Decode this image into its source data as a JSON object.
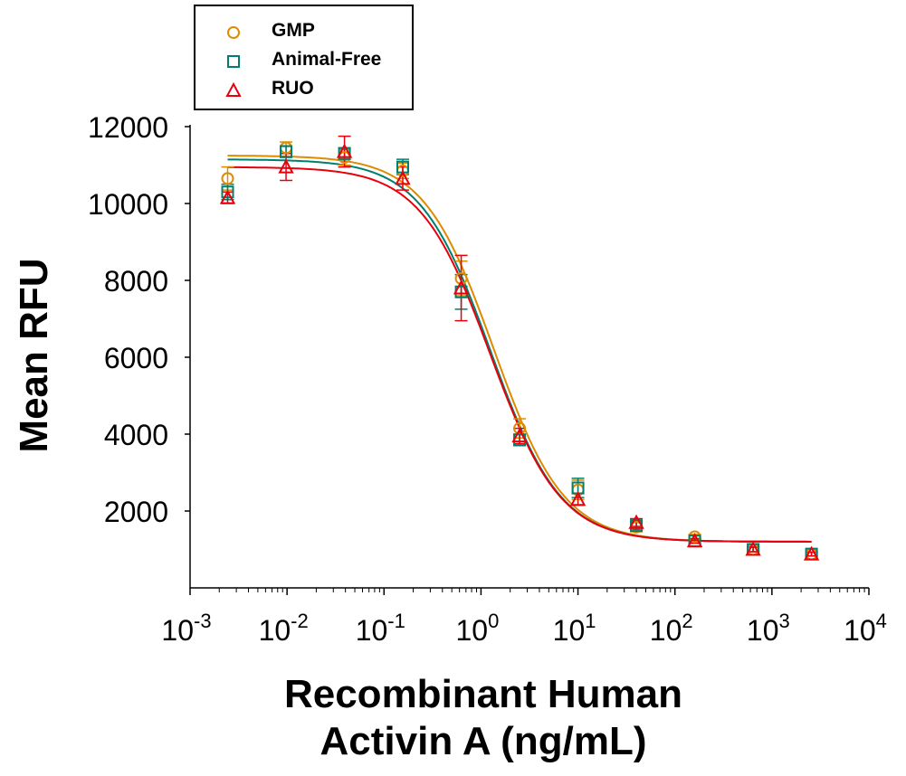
{
  "chart_data": {
    "type": "scatter",
    "title": "",
    "xlabel_line1": "Recombinant Human",
    "xlabel_line2": "Activin A (ng/mL)",
    "ylabel": "Mean RFU",
    "x_scale": "log",
    "xlim_exponents": [
      -3,
      4
    ],
    "x_tick_labels": [
      {
        "base": "10",
        "exp": "-3"
      },
      {
        "base": "10",
        "exp": "-2"
      },
      {
        "base": "10",
        "exp": "-1"
      },
      {
        "base": "10",
        "exp": "0"
      },
      {
        "base": "10",
        "exp": "1"
      },
      {
        "base": "10",
        "exp": "2"
      },
      {
        "base": "10",
        "exp": "3"
      },
      {
        "base": "10",
        "exp": "4"
      }
    ],
    "ylim": [
      0,
      12000
    ],
    "y_ticks": [
      2000,
      4000,
      6000,
      8000,
      10000,
      12000
    ],
    "y_tick_labels": [
      "2000",
      "4000",
      "6000",
      "8000",
      "10000",
      "12000"
    ],
    "legend_position": "top-left",
    "grid": false,
    "x": [
      0.00244,
      0.00977,
      0.0391,
      0.156,
      0.625,
      2.5,
      10,
      40,
      160,
      640,
      2560
    ],
    "series": [
      {
        "name": "GMP",
        "marker": "circle",
        "color": "#E08A00",
        "y": [
          10650,
          11450,
          11200,
          10850,
          8050,
          4150,
          2550,
          1580,
          1330,
          1000,
          880
        ],
        "error": [
          300,
          150,
          200,
          200,
          450,
          250,
          250,
          120,
          60,
          60,
          50
        ],
        "fit": {
          "top": 11250,
          "bottom": 1200,
          "ec50": 1.35,
          "hill": 1.2
        }
      },
      {
        "name": "Animal-Free",
        "marker": "square",
        "color": "#007F6E",
        "y": [
          10300,
          11350,
          11300,
          10950,
          7700,
          3850,
          2600,
          1620,
          1220,
          1000,
          880
        ],
        "error": [
          200,
          150,
          150,
          200,
          450,
          150,
          250,
          100,
          60,
          60,
          50
        ],
        "fit": {
          "top": 11150,
          "bottom": 1200,
          "ec50": 1.25,
          "hill": 1.2
        }
      },
      {
        "name": "RUO",
        "marker": "triangle",
        "color": "#E8000B",
        "y": [
          10150,
          10950,
          11350,
          10650,
          7800,
          3950,
          2300,
          1700,
          1220,
          1000,
          880
        ],
        "error": [
          150,
          350,
          400,
          300,
          850,
          200,
          150,
          100,
          60,
          60,
          50
        ],
        "fit": {
          "top": 10950,
          "bottom": 1200,
          "ec50": 1.25,
          "hill": 1.2
        }
      }
    ]
  }
}
